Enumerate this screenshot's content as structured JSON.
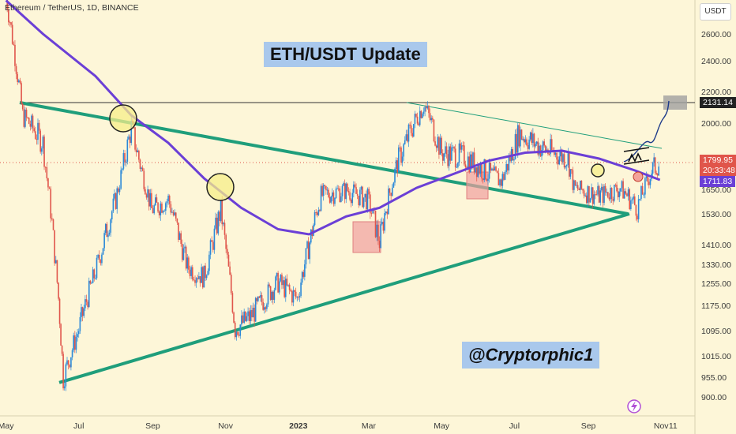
{
  "header": {
    "symbol_text": "Ethereum / TetherUS, 1D, BINANCE"
  },
  "currency_button": "USDT",
  "annotations": {
    "title": "ETH/USDT Update",
    "author": "@Cryptorphic1"
  },
  "price_labels": {
    "resistance": "2131.14",
    "last_price": "1799.95",
    "countdown": "20:33:48",
    "ma_value": "1711.83"
  },
  "colors": {
    "background": "#fdf6d8",
    "ma_line": "#6b3fd6",
    "trendline": "#1f9e7b",
    "up": "#2a88d8",
    "down": "#e0554b"
  },
  "chart_data": {
    "type": "line",
    "y_ticks": [
      "2600.00",
      "2400.00",
      "2200.00",
      "2000.00",
      "1650.00",
      "1530.00",
      "1410.00",
      "1330.00",
      "1255.00",
      "1175.00",
      "1095.00",
      "1015.00",
      "955.00",
      "900.00"
    ],
    "x_ticks": [
      "May",
      "Jul",
      "Sep",
      "Nov",
      "2023",
      "Mar",
      "May",
      "Jul",
      "Sep",
      "Nov",
      "11"
    ],
    "ylim": [
      860,
      2750
    ],
    "series": [
      {
        "values": [
          [
            "2022-05-01",
            2900
          ],
          [
            "2022-05-15",
            2050
          ],
          [
            "2022-06-01",
            1900
          ],
          [
            "2022-06-14",
            1200
          ],
          [
            "2022-06-18",
            950
          ],
          [
            "2022-07-01",
            1100
          ],
          [
            "2022-07-15",
            1300
          ],
          [
            "2022-08-01",
            1600
          ],
          [
            "2022-08-14",
            1980
          ],
          [
            "2022-08-31",
            1550
          ],
          [
            "2022-09-14",
            1600
          ],
          [
            "2022-09-30",
            1320
          ],
          [
            "2022-10-14",
            1280
          ],
          [
            "2022-10-28",
            1550
          ],
          [
            "2022-11-09",
            1100
          ],
          [
            "2022-11-22",
            1140
          ],
          [
            "2022-12-15",
            1260
          ],
          [
            "2022-12-31",
            1200
          ],
          [
            "2023-01-20",
            1620
          ],
          [
            "2023-02-10",
            1650
          ],
          [
            "2023-02-28",
            1600
          ],
          [
            "2023-03-10",
            1420
          ],
          [
            "2023-03-25",
            1800
          ],
          [
            "2023-04-16",
            2120
          ],
          [
            "2023-05-01",
            1850
          ],
          [
            "2023-05-20",
            1830
          ],
          [
            "2023-06-10",
            1740
          ],
          [
            "2023-06-20",
            1700
          ],
          [
            "2023-07-05",
            1950
          ],
          [
            "2023-07-25",
            1870
          ],
          [
            "2023-08-15",
            1820
          ],
          [
            "2023-08-20",
            1660
          ],
          [
            "2023-09-10",
            1620
          ],
          [
            "2023-09-28",
            1660
          ],
          [
            "2023-10-12",
            1560
          ],
          [
            "2023-10-24",
            1760
          ],
          [
            "2023-10-31",
            1800
          ]
        ]
      },
      {
        "values": [
          [
            "2022-05-01",
            2850
          ],
          [
            "2022-06-01",
            2600
          ],
          [
            "2022-07-15",
            2300
          ],
          [
            "2022-08-14",
            2050
          ],
          [
            "2022-09-14",
            1900
          ],
          [
            "2022-10-14",
            1720
          ],
          [
            "2022-11-14",
            1560
          ],
          [
            "2022-12-15",
            1470
          ],
          [
            "2023-01-10",
            1450
          ],
          [
            "2023-02-10",
            1520
          ],
          [
            "2023-03-10",
            1560
          ],
          [
            "2023-04-10",
            1660
          ],
          [
            "2023-05-10",
            1740
          ],
          [
            "2023-06-10",
            1810
          ],
          [
            "2023-07-10",
            1850
          ],
          [
            "2023-08-10",
            1860
          ],
          [
            "2023-09-10",
            1820
          ],
          [
            "2023-10-10",
            1760
          ],
          [
            "2023-10-31",
            1712
          ]
        ]
      }
    ]
  }
}
